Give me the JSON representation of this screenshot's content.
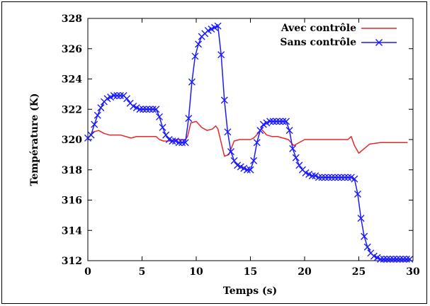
{
  "chart_data": {
    "type": "line",
    "title": "",
    "xlabel": "Temps (s)",
    "ylabel": "Température (K)",
    "xlim": [
      0,
      30
    ],
    "ylim": [
      312,
      328
    ],
    "xticks": [
      "0",
      "5",
      "10",
      "15",
      "20",
      "25",
      "30"
    ],
    "yticks": [
      "312",
      "314",
      "316",
      "318",
      "320",
      "322",
      "324",
      "326",
      "328"
    ],
    "grid": false,
    "legend_position": "top-right",
    "series": [
      {
        "name": "Avec contrôle",
        "color": "#e8272b",
        "marker": "none",
        "x": [
          0,
          0.5,
          1,
          1.5,
          2,
          2.5,
          3,
          3.5,
          4,
          4.5,
          5,
          5.5,
          6,
          6.3,
          6.6,
          7,
          7.5,
          8,
          8.5,
          9,
          9.2,
          9.5,
          10,
          10.5,
          11,
          11.5,
          11.8,
          12,
          12.3,
          12.6,
          13,
          13.5,
          14,
          14.5,
          15,
          15.3,
          15.7,
          16,
          16.5,
          17,
          17.5,
          18,
          18.5,
          19,
          19.5,
          20,
          21,
          22,
          23,
          24,
          24.3,
          24.6,
          25,
          25.5,
          26,
          27,
          28,
          29,
          29.5
        ],
        "y": [
          320.1,
          320.5,
          320.6,
          320.4,
          320.3,
          320.3,
          320.3,
          320.2,
          320.1,
          320.2,
          320.2,
          320.2,
          320.2,
          320.2,
          320.0,
          319.9,
          319.9,
          320.0,
          320.0,
          320.0,
          320.2,
          321.1,
          321.2,
          320.8,
          320.6,
          320.7,
          320.9,
          320.7,
          319.8,
          318.9,
          319.0,
          319.9,
          320.0,
          320.0,
          320.0,
          320.1,
          320.4,
          320.7,
          320.3,
          320.2,
          320.2,
          320.1,
          320.0,
          319.6,
          319.8,
          320.0,
          320.0,
          320.0,
          320.0,
          320.0,
          320.2,
          319.6,
          319.1,
          319.4,
          319.7,
          319.8,
          319.8,
          319.8,
          319.8
        ]
      },
      {
        "name": "Sans contrôle",
        "color": "#1a1aff",
        "marker": "x",
        "x": [
          0,
          0.3,
          0.6,
          0.9,
          1.2,
          1.5,
          1.8,
          2.1,
          2.4,
          2.7,
          3,
          3.3,
          3.6,
          3.9,
          4.2,
          4.5,
          4.8,
          5.1,
          5.4,
          5.7,
          6,
          6.3,
          6.6,
          6.9,
          7.2,
          7.5,
          7.8,
          8.1,
          8.4,
          8.7,
          9,
          9.3,
          9.6,
          9.9,
          10.2,
          10.5,
          10.8,
          11.1,
          11.4,
          11.7,
          12,
          12.3,
          12.6,
          12.9,
          13.2,
          13.5,
          13.8,
          14.1,
          14.4,
          14.7,
          15,
          15.3,
          15.6,
          15.9,
          16.2,
          16.5,
          16.8,
          17.1,
          17.4,
          17.7,
          18,
          18.3,
          18.6,
          18.9,
          19.2,
          19.5,
          19.8,
          20.1,
          20.4,
          20.7,
          21,
          21.3,
          21.6,
          21.9,
          22.2,
          22.5,
          22.8,
          23.1,
          23.4,
          23.7,
          24,
          24.3,
          24.6,
          24.9,
          25.2,
          25.5,
          25.8,
          26.1,
          26.4,
          26.7,
          27,
          27.3,
          27.6,
          27.9,
          28.2,
          28.5,
          28.8,
          29.1,
          29.4,
          29.7
        ],
        "y": [
          320.1,
          320.3,
          321.0,
          321.6,
          322.1,
          322.5,
          322.7,
          322.8,
          322.9,
          322.9,
          322.9,
          322.9,
          322.7,
          322.4,
          322.2,
          322.1,
          322.0,
          322.0,
          322.0,
          322.0,
          322.0,
          322.0,
          321.5,
          320.8,
          320.3,
          320.0,
          319.9,
          319.9,
          319.8,
          319.8,
          319.8,
          321.4,
          323.8,
          325.5,
          326.3,
          326.8,
          327.0,
          327.2,
          327.3,
          327.4,
          327.5,
          325.6,
          322.6,
          320.5,
          319.2,
          318.6,
          318.3,
          318.2,
          318.1,
          318.0,
          318.0,
          318.6,
          319.8,
          320.6,
          321.0,
          321.1,
          321.2,
          321.2,
          321.2,
          321.2,
          321.2,
          321.2,
          320.6,
          319.4,
          318.8,
          318.3,
          318.0,
          317.8,
          317.7,
          317.6,
          317.6,
          317.5,
          317.5,
          317.5,
          317.5,
          317.5,
          317.5,
          317.5,
          317.5,
          317.5,
          317.5,
          317.5,
          317.4,
          316.4,
          314.8,
          313.6,
          312.9,
          312.5,
          312.3,
          312.2,
          312.1,
          312.1,
          312.1,
          312.1,
          312.1,
          312.1,
          312.1,
          312.1,
          312.1,
          312.1
        ]
      }
    ]
  }
}
